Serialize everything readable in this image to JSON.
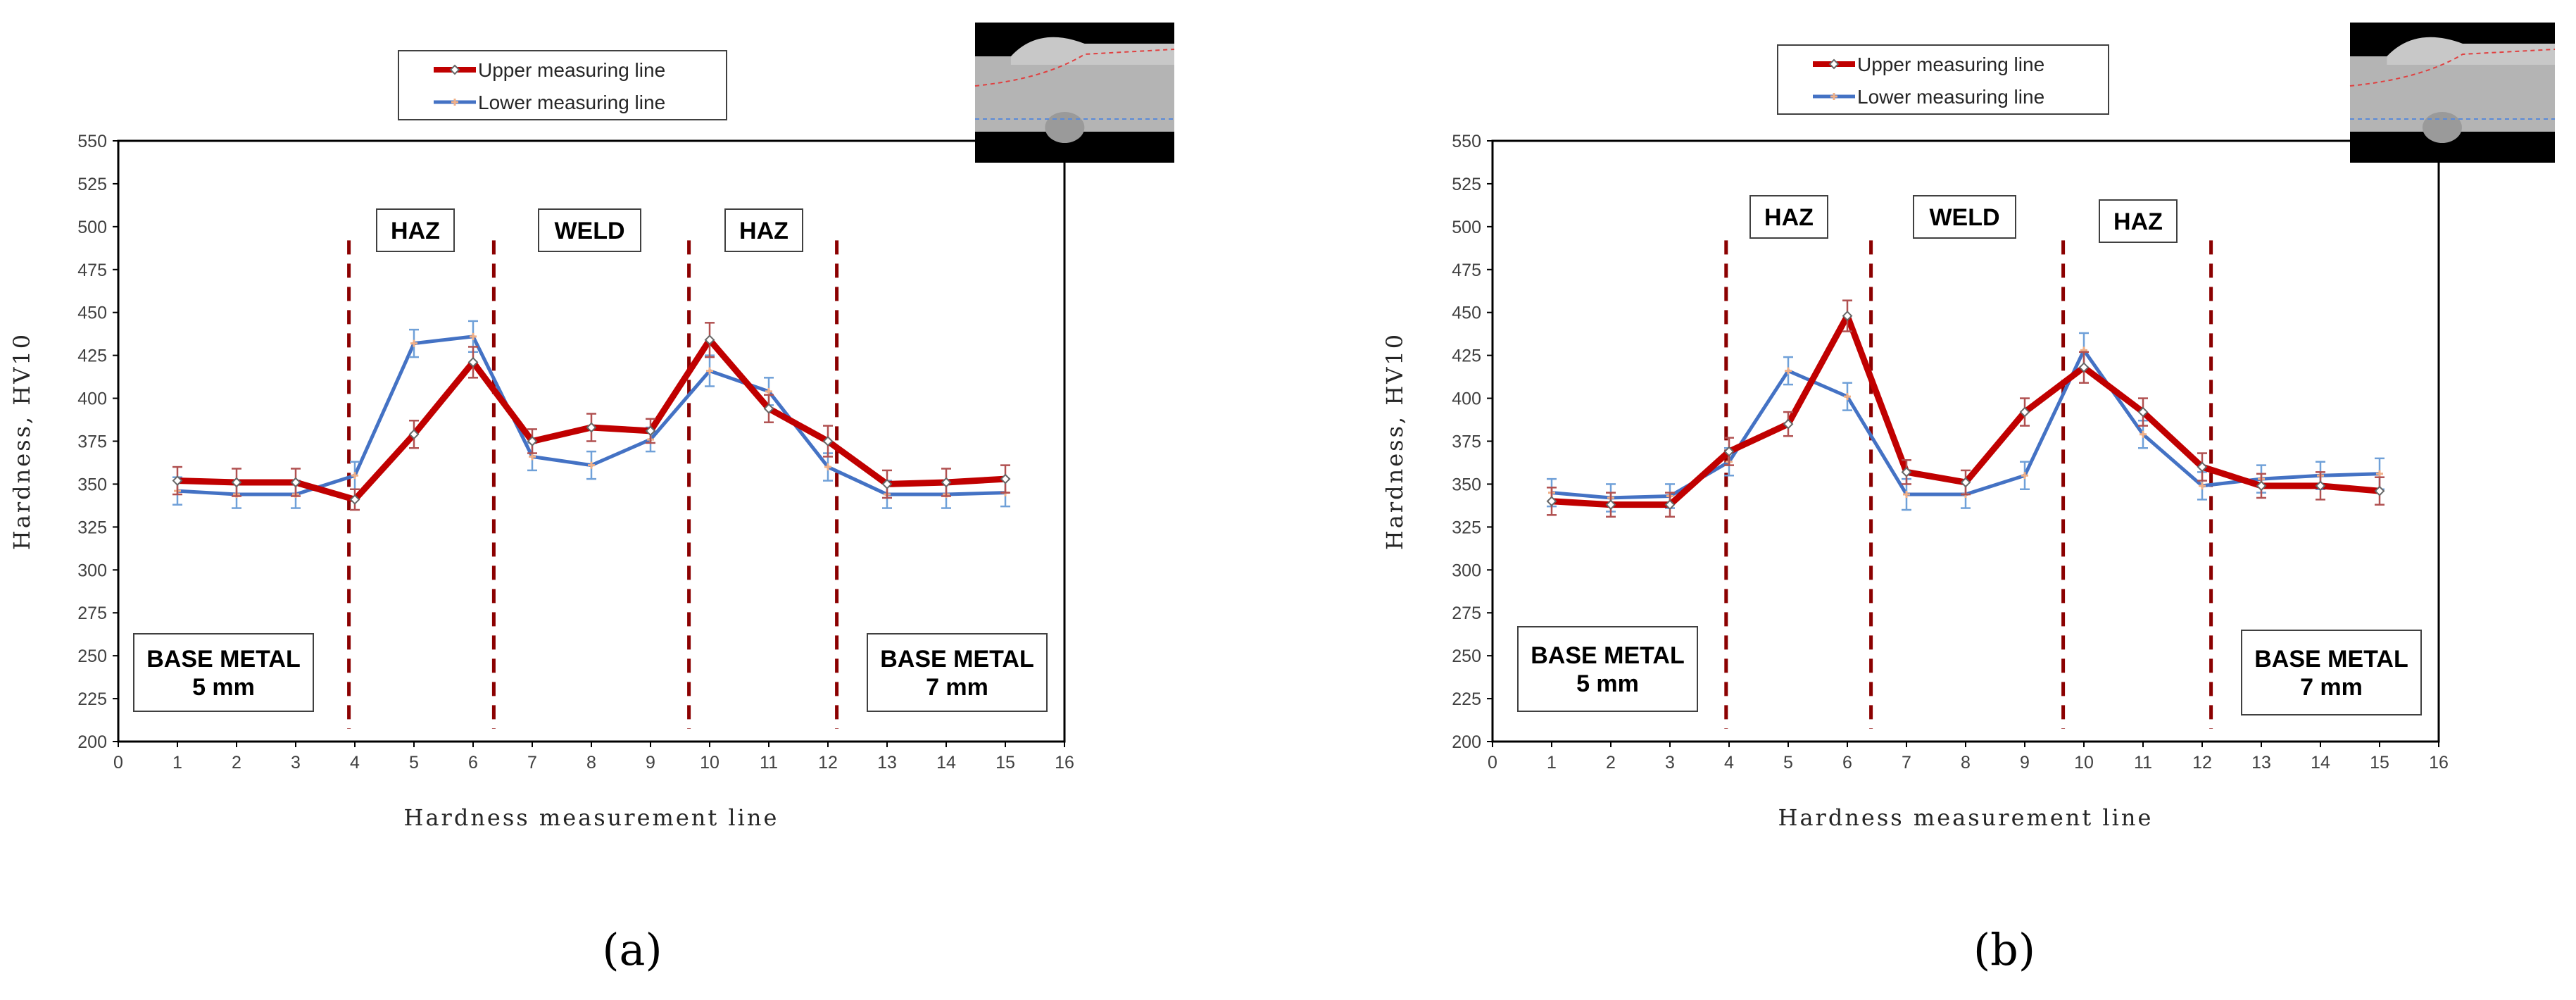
{
  "chart_data": [
    {
      "type": "line",
      "panel_label": "(a)",
      "xlabel": "Hardness measurement line",
      "ylabel": "Hardness, HV10",
      "xlim": [
        0,
        16
      ],
      "ylim": [
        200,
        550
      ],
      "xticks": [
        0,
        1,
        2,
        3,
        4,
        5,
        6,
        7,
        8,
        9,
        10,
        11,
        12,
        13,
        14,
        15,
        16
      ],
      "yticks": [
        200,
        225,
        250,
        275,
        300,
        325,
        350,
        375,
        400,
        425,
        450,
        475,
        500,
        525,
        550
      ],
      "x": [
        1,
        2,
        3,
        4,
        5,
        6,
        7,
        8,
        9,
        10,
        11,
        12,
        13,
        14,
        15
      ],
      "series": [
        {
          "name": "Upper measuring line",
          "color": "#c00000",
          "values": [
            352,
            351,
            351,
            341,
            379,
            421,
            375,
            383,
            381,
            434,
            394,
            375,
            350,
            351,
            353
          ],
          "errors": [
            8,
            8,
            8,
            6,
            8,
            9,
            7,
            8,
            7,
            10,
            8,
            9,
            8,
            8,
            8
          ]
        },
        {
          "name": "Lower measuring line",
          "color": "#4472c4",
          "values": [
            346,
            344,
            344,
            355,
            432,
            436,
            366,
            361,
            376,
            416,
            404,
            360,
            344,
            344,
            345
          ],
          "errors": [
            8,
            8,
            8,
            8,
            8,
            9,
            8,
            8,
            7,
            9,
            8,
            8,
            8,
            8,
            8
          ]
        }
      ],
      "region_lines": [
        3.9,
        6.35,
        9.65,
        12.15
      ],
      "region_labels": {
        "haz_left": "HAZ",
        "weld": "WELD",
        "haz_right": "HAZ",
        "base_left": [
          "BASE METAL",
          "5 mm"
        ],
        "base_right": [
          "BASE METAL",
          "7 mm"
        ]
      },
      "legend_position": "top"
    },
    {
      "type": "line",
      "panel_label": "(b)",
      "xlabel": "Hardness measurement line",
      "ylabel": "Hardness, HV10",
      "xlim": [
        0,
        16
      ],
      "ylim": [
        200,
        550
      ],
      "xticks": [
        0,
        1,
        2,
        3,
        4,
        5,
        6,
        7,
        8,
        9,
        10,
        11,
        12,
        13,
        14,
        15,
        16
      ],
      "yticks": [
        200,
        225,
        250,
        275,
        300,
        325,
        350,
        375,
        400,
        425,
        450,
        475,
        500,
        525,
        550
      ],
      "x": [
        1,
        2,
        3,
        4,
        5,
        6,
        7,
        8,
        9,
        10,
        11,
        12,
        13,
        14,
        15
      ],
      "series": [
        {
          "name": "Upper measuring line",
          "color": "#c00000",
          "values": [
            340,
            338,
            338,
            369,
            385,
            448,
            357,
            351,
            392,
            418,
            392,
            360,
            349,
            349,
            346
          ],
          "errors": [
            8,
            7,
            7,
            8,
            7,
            9,
            7,
            7,
            8,
            9,
            8,
            8,
            7,
            8,
            8
          ]
        },
        {
          "name": "Lower measuring line",
          "color": "#4472c4",
          "values": [
            345,
            342,
            343,
            363,
            416,
            401,
            344,
            344,
            355,
            428,
            379,
            349,
            353,
            355,
            356
          ],
          "errors": [
            8,
            8,
            7,
            8,
            8,
            8,
            9,
            8,
            8,
            10,
            8,
            8,
            8,
            8,
            9
          ]
        }
      ],
      "region_lines": [
        3.95,
        6.4,
        9.65,
        12.15
      ],
      "region_labels": {
        "haz_left": "HAZ",
        "weld": "WELD",
        "haz_right": "HAZ",
        "base_left": [
          "BASE METAL",
          "5 mm"
        ],
        "base_right": [
          "BASE METAL",
          "7 mm"
        ]
      },
      "legend_position": "top"
    }
  ],
  "colors": {
    "upper": "#c00000",
    "lower": "#4472c4",
    "error_upper": "#b05050",
    "error_lower": "#6fa0d8",
    "marker_upper": "#666666",
    "marker_lower": "#f0b088",
    "region_line": "#8b0000"
  },
  "inset_images": [
    "weld-cross-section-image",
    "weld-cross-section-image"
  ]
}
